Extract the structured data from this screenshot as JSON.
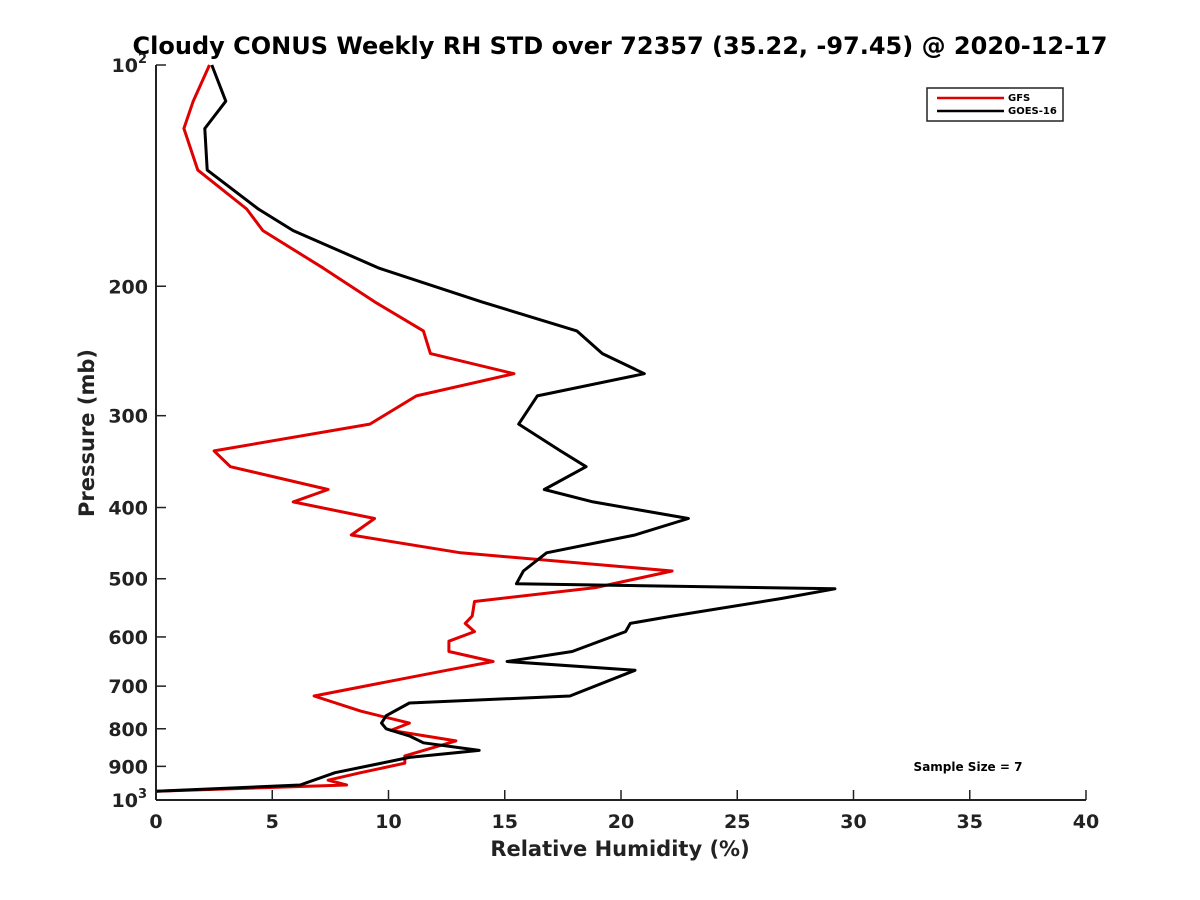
{
  "chart_data": {
    "type": "line",
    "title": "Cloudy CONUS Weekly RH STD over 72357 (35.22, -97.45) @ 2020-12-17",
    "xlabel": "Relative Humidity (%)",
    "ylabel": "Pressure (mb)",
    "xlim": [
      0,
      40
    ],
    "ylim": [
      100,
      1000
    ],
    "y_scale": "log",
    "y_reversed": true,
    "x_ticks": [
      "0",
      "5",
      "10",
      "15",
      "20",
      "25",
      "30",
      "35",
      "40"
    ],
    "y_ticks": [
      {
        "value": 100,
        "label": "10",
        "sup": "2"
      },
      {
        "value": 200,
        "label": "200"
      },
      {
        "value": 300,
        "label": "300"
      },
      {
        "value": 400,
        "label": "400"
      },
      {
        "value": 500,
        "label": "500"
      },
      {
        "value": 600,
        "label": "600"
      },
      {
        "value": 700,
        "label": "700"
      },
      {
        "value": 800,
        "label": "800"
      },
      {
        "value": 900,
        "label": "900"
      },
      {
        "value": 1000,
        "label": "10",
        "sup": "3"
      }
    ],
    "legend_position": "top-right",
    "annotation": "Sample Size = 7",
    "series": [
      {
        "name": "GFS",
        "color": "#e00000",
        "x": [
          2.3,
          1.6,
          1.2,
          1.8,
          3.9,
          4.6,
          7.2,
          9.4,
          11.5,
          11.8,
          15.4,
          11.2,
          9.2,
          2.5,
          3.2,
          7.4,
          5.9,
          9.4,
          8.4,
          13.1,
          22.2,
          18.9,
          13.7,
          13.6,
          13.3,
          13.7,
          12.6,
          12.6,
          14.5,
          12.5,
          6.8,
          8.8,
          10.9,
          10.1,
          12.9,
          10.7,
          10.7,
          8.8,
          7.4,
          8.2,
          0.0
        ],
        "y": [
          100,
          112,
          122,
          139,
          157,
          168,
          189,
          210,
          230,
          247,
          263,
          282,
          308,
          335,
          352,
          378,
          393,
          414,
          436,
          461,
          488,
          514,
          537,
          562,
          575,
          590,
          608,
          628,
          648,
          666,
          722,
          757,
          786,
          804,
          831,
          871,
          891,
          918,
          940,
          954,
          973
        ]
      },
      {
        "name": "GOES-16",
        "color": "#000000",
        "x": [
          2.4,
          3.0,
          2.1,
          2.2,
          4.4,
          5.9,
          9.6,
          14.0,
          18.1,
          19.2,
          21.0,
          16.4,
          15.6,
          17.4,
          18.5,
          16.7,
          18.8,
          22.9,
          20.6,
          16.8,
          15.8,
          15.5,
          29.2,
          26.9,
          22.2,
          20.4,
          20.2,
          17.9,
          15.1,
          20.6,
          17.8,
          10.9,
          9.9,
          9.7,
          9.9,
          10.9,
          11.5,
          13.9,
          10.9,
          7.7,
          6.2,
          0.0
        ],
        "y": [
          100,
          112,
          122,
          139,
          157,
          168,
          189,
          210,
          230,
          247,
          263,
          282,
          308,
          335,
          352,
          378,
          393,
          414,
          436,
          461,
          488,
          508,
          516,
          532,
          562,
          575,
          590,
          628,
          648,
          666,
          722,
          738,
          768,
          786,
          800,
          818,
          836,
          856,
          875,
          918,
          954,
          973
        ]
      }
    ]
  }
}
